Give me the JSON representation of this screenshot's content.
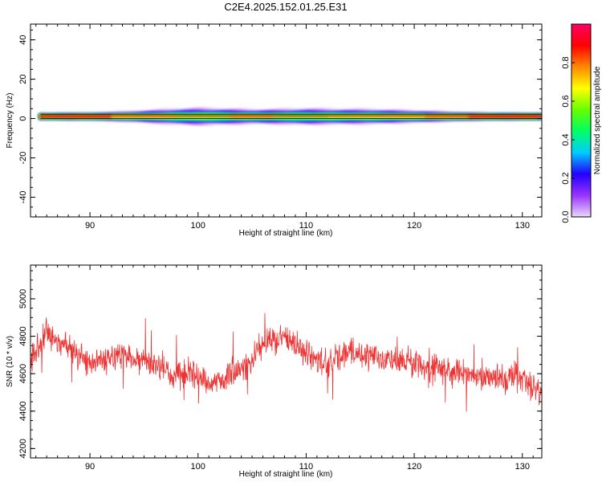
{
  "figure": {
    "title": "C2E4.2025.152.01.25.E31"
  },
  "chart_data": [
    {
      "type": "heatmap",
      "xlabel": "Height of straight line (km)",
      "ylabel": "Frequency (Hz)",
      "xlim": [
        84.5,
        131.8
      ],
      "ylim": [
        -50,
        48
      ],
      "xticks": [
        90,
        100,
        110,
        120,
        130
      ],
      "yticks": [
        -40,
        -20,
        0,
        20,
        40
      ],
      "band_center_hz": 1,
      "colorbar": {
        "label": "Normalized spectral amplitude",
        "range": [
          0,
          1
        ],
        "ticks": [
          "0.0",
          "0.2",
          "0.4",
          "0.6",
          "0.8"
        ],
        "colormap": [
          "#e8d8f8",
          "#9a33ff",
          "#2200ff",
          "#00ccff",
          "#00ff66",
          "#66ff00",
          "#ffff00",
          "#ff8800",
          "#ff0000",
          "#ff0066"
        ]
      },
      "data_extent_x": [
        85.3,
        131.8
      ],
      "profile_x": [
        85.3,
        88,
        92,
        95,
        98,
        100,
        102,
        105,
        108,
        110,
        113,
        116,
        119,
        122,
        125,
        128,
        131.8
      ],
      "profile_halfwidth_hz": [
        1.5,
        1.7,
        2.3,
        3.2,
        4.2,
        4.6,
        4.3,
        3.8,
        4.0,
        4.3,
        4.0,
        3.9,
        3.4,
        2.8,
        2.2,
        1.8,
        1.6
      ]
    },
    {
      "type": "line",
      "xlabel": "Height of straight line (km)",
      "ylabel": "SNR (10 * v/v)",
      "xlim": [
        84.5,
        131.8
      ],
      "ylim": [
        4150,
        5180
      ],
      "xticks": [
        90,
        100,
        110,
        120,
        130
      ],
      "yticks": [
        4200,
        4400,
        4600,
        4800,
        5000
      ],
      "color": "#ee3333",
      "series": [
        {
          "x_range": [
            84.5,
            131.8
          ],
          "n_points": 1500,
          "noise_amplitude": 85,
          "trend_x": [
            84.5,
            86,
            87.5,
            90,
            93,
            96,
            98,
            100,
            102,
            104,
            106,
            108,
            110,
            112,
            114,
            116,
            118,
            120,
            122,
            124,
            126,
            128,
            130,
            131.8
          ],
          "trend_y": [
            4680,
            4820,
            4760,
            4660,
            4700,
            4640,
            4600,
            4580,
            4560,
            4620,
            4760,
            4780,
            4720,
            4640,
            4720,
            4690,
            4660,
            4650,
            4630,
            4600,
            4580,
            4570,
            4580,
            4480
          ]
        }
      ]
    }
  ]
}
